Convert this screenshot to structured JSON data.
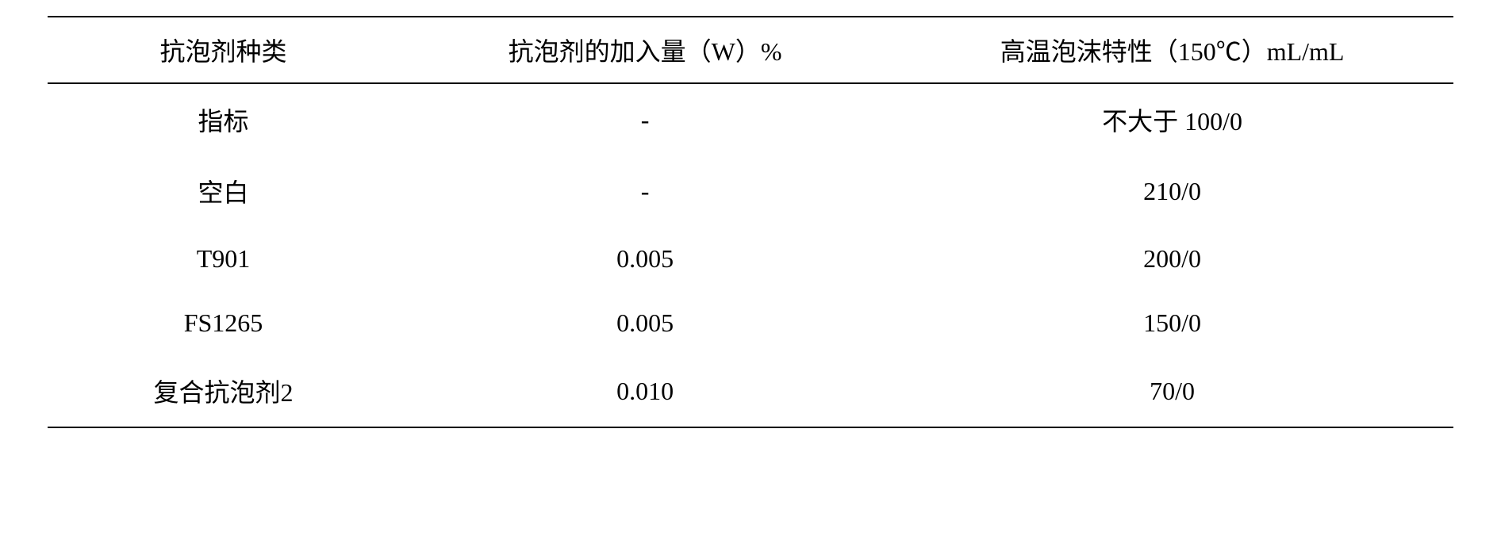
{
  "table": {
    "columns": [
      "抗泡剂种类",
      "抗泡剂的加入量（W）%",
      "高温泡沫特性（150℃）mL/mL"
    ],
    "rows": [
      {
        "type": "指标",
        "amount": "-",
        "foam": "不大于 100/0"
      },
      {
        "type": "空白",
        "amount": "-",
        "foam": "210/0"
      },
      {
        "type": "T901",
        "amount": "0.005",
        "foam": "200/0"
      },
      {
        "type": "FS1265",
        "amount": "0.005",
        "foam": "150/0"
      },
      {
        "type": "复合抗泡剂2",
        "amount": "0.010",
        "foam": "70/0"
      }
    ],
    "background_color": "#ffffff",
    "text_color": "#000000",
    "border_color": "#000000",
    "font_size_pt": 24
  }
}
